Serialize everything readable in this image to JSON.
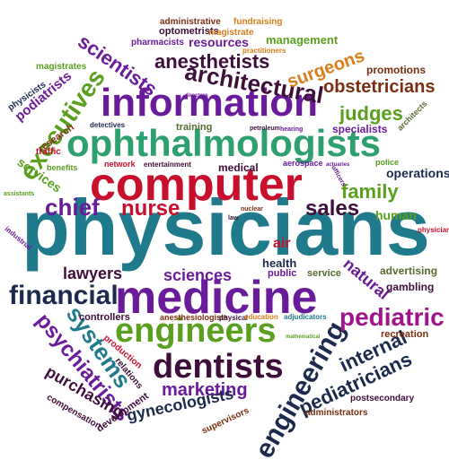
{
  "colors": {
    "teal": "#1f7a8c",
    "crimson": "#c8102e",
    "navy": "#1c2a4e",
    "plum": "#3d0f3a",
    "green": "#5a9f1e",
    "purple": "#6a1b9a",
    "olive": "#556b2f",
    "brown": "#7b2e12",
    "orange": "#d97d18",
    "magenta": "#a0168a"
  },
  "words": [
    {
      "text": "physicians",
      "color": "#1f7a8c"
    },
    {
      "text": "computer",
      "color": "#c8102e"
    },
    {
      "text": "medicine",
      "color": "#6a1b9a"
    },
    {
      "text": "ophthalmologists",
      "color": "#2e9f6f"
    },
    {
      "text": "information",
      "color": "#6a1b9a"
    },
    {
      "text": "engineers",
      "color": "#5a9f1e"
    },
    {
      "text": "dentists",
      "color": "#3d0f3a"
    },
    {
      "text": "financial",
      "color": "#1c2a4e"
    },
    {
      "text": "engineering",
      "color": "#1c2a4e"
    },
    {
      "text": "executives",
      "color": "#5a9f1e"
    },
    {
      "text": "architectural",
      "color": "#3d0f3a"
    },
    {
      "text": "nurse",
      "color": "#c8102e"
    },
    {
      "text": "sales",
      "color": "#3d0f3a"
    },
    {
      "text": "pediatric",
      "color": "#a0168a"
    },
    {
      "text": "systems",
      "color": "#1f7a8c"
    },
    {
      "text": "psychiatrists",
      "color": "#6a1b9a"
    },
    {
      "text": "chief",
      "color": "#6a1b9a"
    },
    {
      "text": "family",
      "color": "#5a9f1e"
    },
    {
      "text": "judges",
      "color": "#5a9f1e"
    },
    {
      "text": "anesthetists",
      "color": "#3d0f3a"
    },
    {
      "text": "scientists",
      "color": "#6a1b9a"
    },
    {
      "text": "surgeons",
      "color": "#d97d18"
    },
    {
      "text": "obstetricians",
      "color": "#7b2e12"
    },
    {
      "text": "pediatricians",
      "color": "#1c2a4e"
    },
    {
      "text": "internal",
      "color": "#1c2a4e"
    },
    {
      "text": "marketing",
      "color": "#6a1b9a"
    },
    {
      "text": "gynecologists",
      "color": "#1c2a4e"
    },
    {
      "text": "purchasing",
      "color": "#3d0f3a"
    },
    {
      "text": "lawyers",
      "color": "#3d0f3a"
    },
    {
      "text": "sciences",
      "color": "#6a1b9a"
    },
    {
      "text": "natural",
      "color": "#6a1b9a"
    },
    {
      "text": "operations",
      "color": "#1c2a4e"
    },
    {
      "text": "human",
      "color": "#5a9f1e"
    },
    {
      "text": "services",
      "color": "#5a9f1e"
    },
    {
      "text": "resources",
      "color": "#6a1b9a"
    },
    {
      "text": "management",
      "color": "#5a9f1e"
    },
    {
      "text": "podiatrists",
      "color": "#6a1b9a"
    },
    {
      "text": "promotions",
      "color": "#7b2e12"
    },
    {
      "text": "advertising",
      "color": "#556b2f"
    },
    {
      "text": "specialists",
      "color": "#6a1b9a"
    },
    {
      "text": "controllers",
      "color": "#3d0f3a"
    },
    {
      "text": "anesthesiologists",
      "color": "#7b2e12"
    },
    {
      "text": "recreation",
      "color": "#7b2e12"
    },
    {
      "text": "gambling",
      "color": "#3d0f3a"
    },
    {
      "text": "air",
      "color": "#c8102e"
    },
    {
      "text": "health",
      "color": "#1c2a4e"
    },
    {
      "text": "public",
      "color": "#6a1b9a"
    },
    {
      "text": "service",
      "color": "#556b2f"
    },
    {
      "text": "medical",
      "color": "#3d0f3a"
    },
    {
      "text": "research",
      "color": "#7b2e12"
    },
    {
      "text": "training",
      "color": "#556b2f"
    },
    {
      "text": "optometrists",
      "color": "#3d0f3a"
    },
    {
      "text": "magistrate",
      "color": "#d97d18"
    },
    {
      "text": "pharmacists",
      "color": "#6a1b9a"
    },
    {
      "text": "magistrates",
      "color": "#5a9f1e"
    },
    {
      "text": "physicists",
      "color": "#1c2a4e"
    },
    {
      "text": "administrative",
      "color": "#7b2e12"
    },
    {
      "text": "fundraising",
      "color": "#d97d18"
    },
    {
      "text": "compensation",
      "color": "#3d0f3a"
    },
    {
      "text": "development",
      "color": "#3d0f3a"
    },
    {
      "text": "relations",
      "color": "#3d0f3a"
    },
    {
      "text": "production",
      "color": "#c8102e"
    },
    {
      "text": "administrators",
      "color": "#7b2e12"
    },
    {
      "text": "postsecondary",
      "color": "#3d0f3a"
    },
    {
      "text": "supervisors",
      "color": "#7b2e12"
    },
    {
      "text": "traffic",
      "color": "#c8102e"
    },
    {
      "text": "benefits",
      "color": "#5a9f1e"
    },
    {
      "text": "network",
      "color": "#c8102e"
    },
    {
      "text": "aerospace",
      "color": "#6a1b9a"
    },
    {
      "text": "police",
      "color": "#5a9f1e"
    },
    {
      "text": "architects",
      "color": "#556b2f"
    },
    {
      "text": "detectives",
      "color": "#1c2a4e"
    },
    {
      "text": "entertainment",
      "color": "#3d0f3a"
    },
    {
      "text": "industrial",
      "color": "#6a1b9a"
    },
    {
      "text": "practitioners",
      "color": "#d97d18"
    },
    {
      "text": "assistants",
      "color": "#5a9f1e"
    },
    {
      "text": "hearing",
      "color": "#6a1b9a"
    },
    {
      "text": "petroleum",
      "color": "#3d0f3a"
    },
    {
      "text": "physician",
      "color": "#c8102e"
    },
    {
      "text": "physical",
      "color": "#3d0f3a"
    },
    {
      "text": "education",
      "color": "#d97d18"
    },
    {
      "text": "adjudicators",
      "color": "#1f7a8c"
    },
    {
      "text": "directors",
      "color": "#6a1b9a"
    },
    {
      "text": "nuclear",
      "color": "#7b2e12"
    },
    {
      "text": "actuaries",
      "color": "#6a1b9a"
    },
    {
      "text": "mathematical",
      "color": "#5a9f1e"
    },
    {
      "text": "officers",
      "color": "#6a1b9a"
    },
    {
      "text": "law",
      "color": "#3d0f3a"
    }
  ]
}
